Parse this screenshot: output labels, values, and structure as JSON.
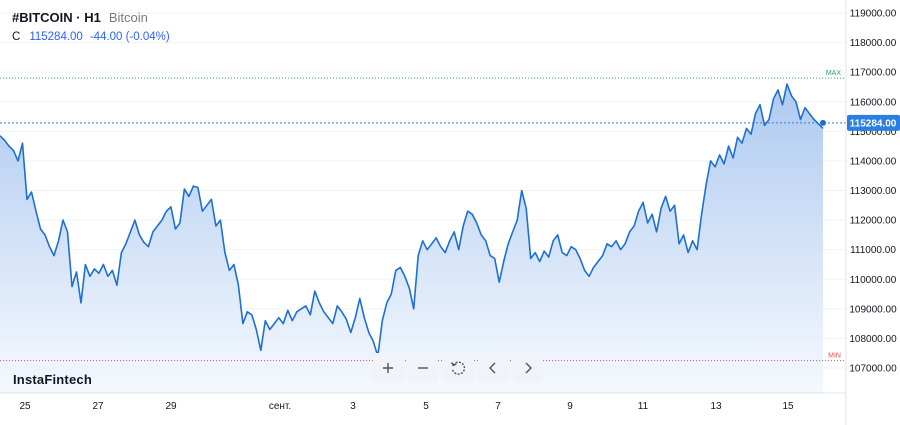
{
  "header": {
    "symbol": "#BITCOIN · H1",
    "name": "Bitcoin",
    "ohlc_label": "C",
    "close": "115284.00",
    "change": "-44.00 (-0.04%)"
  },
  "brand": "InstaFintech",
  "toolbar": {
    "zoom_in": "+",
    "zoom_out": "−",
    "icons": [
      "plus-icon",
      "minus-icon",
      "reset-icon",
      "chevron-left-icon",
      "chevron-right-icon"
    ]
  },
  "colors": {
    "line": "#1c6fd4",
    "area_top": "#a9c7ef",
    "area_bottom": "#f4f8fe",
    "last_price_bg": "#2b7fe0",
    "max_label": "#2fa36b",
    "min_label": "#e0534f"
  },
  "chart_data": {
    "type": "area",
    "title": "#BITCOIN · H1",
    "xlabel": "",
    "ylabel": "",
    "ylim": [
      106500,
      119300
    ],
    "y_ticks": [
      "119000.00",
      "118000.00",
      "117000.00",
      "116000.00",
      "115000.00",
      "114000.00",
      "113000.00",
      "112000.00",
      "111000.00",
      "110000.00",
      "109000.00",
      "108000.00",
      "107000.00"
    ],
    "x_ticks": [
      "25",
      "27",
      "29",
      "сент.",
      "3",
      "5",
      "7",
      "9",
      "11",
      "13",
      "15"
    ],
    "max_label": "MAX",
    "min_label": "MIN",
    "max_value": 116800,
    "min_value": 107250,
    "last_price": "115284.00",
    "series": [
      {
        "values": [
          114850,
          114700,
          114500,
          114350,
          114000,
          114600,
          112700,
          112950,
          112300,
          111700,
          111500,
          111100,
          110800,
          111300,
          112000,
          111600,
          109750,
          110250,
          109200,
          110500,
          110100,
          110350,
          110200,
          110500,
          110100,
          110300,
          109800,
          110900,
          111200,
          111600,
          112000,
          111500,
          111250,
          111100,
          111600,
          111800,
          112000,
          112300,
          112450,
          111700,
          111900,
          113050,
          112800,
          113150,
          113100,
          112300,
          112500,
          112700,
          111800,
          112000,
          110900,
          110300,
          110500,
          109800,
          108500,
          108900,
          108800,
          108300,
          107600,
          108600,
          108300,
          108500,
          108700,
          108500,
          108950,
          108600,
          108900,
          109000,
          109100,
          108800,
          109600,
          109200,
          108900,
          108700,
          108500,
          109100,
          108900,
          108650,
          108200,
          108700,
          109350,
          108700,
          108200,
          107900,
          107400,
          108600,
          109200,
          109500,
          110300,
          110400,
          110100,
          109700,
          109000,
          110800,
          111300,
          111000,
          111200,
          111400,
          111100,
          110900,
          111300,
          111600,
          111000,
          111800,
          112300,
          112200,
          111900,
          111500,
          111300,
          110800,
          110700,
          109900,
          110600,
          111200,
          111600,
          112000,
          113000,
          112400,
          110700,
          110900,
          110600,
          110950,
          110750,
          111300,
          111500,
          110900,
          110800,
          111100,
          111000,
          110700,
          110300,
          110100,
          110400,
          110600,
          110800,
          111200,
          111100,
          111300,
          111000,
          111200,
          111600,
          111800,
          112300,
          112600,
          111900,
          112200,
          111600,
          112400,
          112800,
          112300,
          112500,
          111200,
          111500,
          110900,
          111300,
          111000,
          112200,
          113200,
          114000,
          113800,
          114200,
          113900,
          114500,
          114100,
          114800,
          114600,
          115100,
          114900,
          115600,
          115900,
          115200,
          115400,
          116100,
          116400,
          115900,
          116600,
          116200,
          116000,
          115400,
          115800,
          115600,
          115400,
          115250,
          115100
        ]
      }
    ]
  }
}
